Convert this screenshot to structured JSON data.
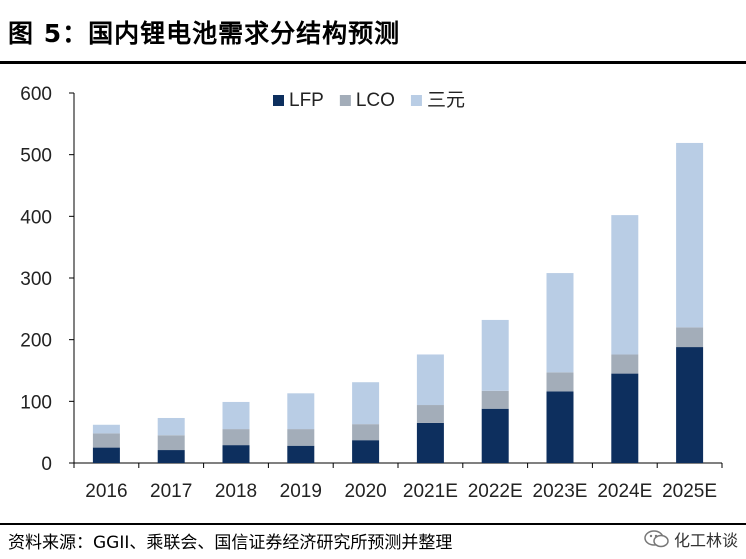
{
  "figure": {
    "title": "图 5：国内锂电池需求分结构预测",
    "source": "资料来源：GGII、乘联会、国信证券经济研究所预测并整理",
    "watermark": "化工林谈"
  },
  "chart_data": {
    "type": "bar",
    "stacked": true,
    "title": "",
    "xlabel": "",
    "ylabel": "",
    "ylim": [
      0,
      600
    ],
    "yticks": [
      0,
      100,
      200,
      300,
      400,
      500,
      600
    ],
    "categories": [
      "2016",
      "2017",
      "2018",
      "2019",
      "2020",
      "2021E",
      "2022E",
      "2023E",
      "2024E",
      "2025E"
    ],
    "series": [
      {
        "name": "LFP",
        "color": "#0d2f5e",
        "values": [
          25,
          21,
          29,
          28,
          37,
          65,
          88,
          116,
          145,
          188
        ]
      },
      {
        "name": "LCO",
        "color": "#a3adb9",
        "values": [
          23,
          24,
          26,
          27,
          26,
          29,
          29,
          31,
          31,
          32
        ]
      },
      {
        "name": "三元",
        "color": "#b9cde5",
        "values": [
          14,
          28,
          44,
          58,
          68,
          82,
          115,
          161,
          226,
          299
        ]
      }
    ],
    "legend_position": "top-center",
    "grid": false
  }
}
